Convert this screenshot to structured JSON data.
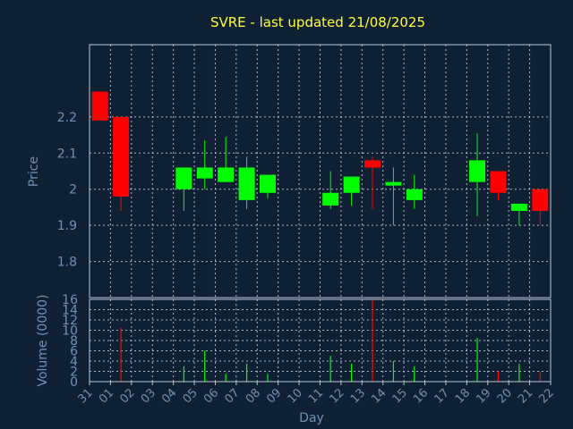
{
  "chart_data": [
    {
      "type": "candlestick",
      "title": "SVRE - last updated 21/08/2025",
      "ylabel": "Price",
      "yticks": [
        "1.8",
        "1.9",
        "2",
        "2.1",
        "2.2"
      ],
      "ylim": [
        1.7,
        2.4
      ],
      "grid": true,
      "up_color": "#00ff00",
      "down_color": "#ff0000",
      "candles": [
        {
          "day": "31",
          "open": 2.27,
          "high": 2.27,
          "low": 2.19,
          "close": 2.19
        },
        {
          "day": "01",
          "open": 2.2,
          "high": 2.2,
          "low": 1.94,
          "close": 1.98
        },
        {
          "day": "04",
          "open": 2.0,
          "high": 2.06,
          "low": 1.94,
          "close": 2.06
        },
        {
          "day": "05",
          "open": 2.03,
          "high": 2.135,
          "low": 2.0,
          "close": 2.06
        },
        {
          "day": "06",
          "open": 2.02,
          "high": 2.145,
          "low": 2.02,
          "close": 2.06
        },
        {
          "day": "07",
          "open": 1.97,
          "high": 2.09,
          "low": 1.945,
          "close": 2.06
        },
        {
          "day": "08",
          "open": 1.99,
          "high": 2.04,
          "low": 1.975,
          "close": 2.04
        },
        {
          "day": "11",
          "open": 1.955,
          "high": 2.05,
          "low": 1.945,
          "close": 1.99
        },
        {
          "day": "12",
          "open": 1.99,
          "high": 2.035,
          "low": 1.955,
          "close": 2.035
        },
        {
          "day": "13",
          "open": 2.08,
          "high": 2.09,
          "low": 1.945,
          "close": 2.06
        },
        {
          "day": "14",
          "open": 2.01,
          "high": 2.06,
          "low": 1.9,
          "close": 2.02
        },
        {
          "day": "15",
          "open": 1.97,
          "high": 2.04,
          "low": 1.945,
          "close": 2.0
        },
        {
          "day": "18",
          "open": 2.02,
          "high": 2.155,
          "low": 1.925,
          "close": 2.08
        },
        {
          "day": "19",
          "open": 2.05,
          "high": 2.05,
          "low": 1.97,
          "close": 1.99
        },
        {
          "day": "20",
          "open": 1.94,
          "high": 1.96,
          "low": 1.9,
          "close": 1.96
        },
        {
          "day": "21",
          "open": 2.0,
          "high": 2.0,
          "low": 1.9,
          "close": 1.94
        }
      ]
    },
    {
      "type": "bar",
      "ylabel": "Volume (0000)",
      "xlabel": "Day",
      "yticks": [
        "0",
        "2",
        "4",
        "6",
        "8",
        "10",
        "12",
        "14",
        "16"
      ],
      "ylim": [
        0,
        16
      ],
      "grid": true,
      "x_ticks": [
        "31",
        "01",
        "02",
        "03",
        "04",
        "05",
        "06",
        "07",
        "08",
        "09",
        "10",
        "11",
        "12",
        "13",
        "14",
        "15",
        "16",
        "17",
        "18",
        "19",
        "20",
        "21",
        "22"
      ],
      "bars": [
        {
          "day": "01",
          "value": 10.5,
          "color": "#ff0000"
        },
        {
          "day": "04",
          "value": 3.0,
          "color": "#00ff00"
        },
        {
          "day": "05",
          "value": 6.0,
          "color": "#00ff00"
        },
        {
          "day": "06",
          "value": 1.5,
          "color": "#00ff00"
        },
        {
          "day": "07",
          "value": 3.5,
          "color": "#00ff00"
        },
        {
          "day": "08",
          "value": 1.5,
          "color": "#00ff00"
        },
        {
          "day": "11",
          "value": 5.0,
          "color": "#00ff00"
        },
        {
          "day": "12",
          "value": 3.5,
          "color": "#00ff00"
        },
        {
          "day": "13",
          "value": 16.0,
          "color": "#ff0000"
        },
        {
          "day": "14",
          "value": 4.0,
          "color": "#00ff00"
        },
        {
          "day": "15",
          "value": 3.0,
          "color": "#00ff00"
        },
        {
          "day": "18",
          "value": 8.5,
          "color": "#00ff00"
        },
        {
          "day": "19",
          "value": 2.0,
          "color": "#ff0000"
        },
        {
          "day": "20",
          "value": 3.5,
          "color": "#00ff00"
        },
        {
          "day": "21",
          "value": 2.0,
          "color": "#ff0000"
        }
      ]
    }
  ]
}
